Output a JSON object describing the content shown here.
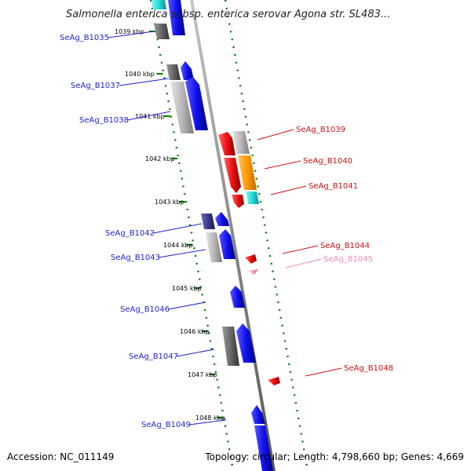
{
  "title": "Salmonella enterica subsp. enterica serovar Agona str. SL483...",
  "footer": {
    "accession": "Accession: NC_011149",
    "summary": "Topology: circular; Length: 4,798,660 bp; Genes: 4,669"
  },
  "kbp_labels": [
    "1039 kbp",
    "1040 kbp",
    "1041 kbp",
    "1042 kbp",
    "1043 kbp",
    "1044 kbp",
    "1045 kbp",
    "1046 kbp",
    "1047 kbp",
    "1048 kbp"
  ],
  "colors": {
    "backbone": "#888888",
    "tick": "#008000",
    "left_label": "#1f1fcc",
    "right_label": "#cc1111",
    "pale_label": "#f08cb0",
    "blue": "#1010ee",
    "navy": "#3a3a8c",
    "dark_gray": "#666666",
    "light_gray": "#b8b8b8",
    "red": "#ee1111",
    "orange": "#ff9900",
    "cyan": "#22dddd",
    "pink": "#f4a0c0"
  },
  "genes_left": [
    {
      "label": "SeAg_B1035"
    },
    {
      "label": "SeAg_B1037"
    },
    {
      "label": "SeAg_B1038"
    },
    {
      "label": "SeAg_B1042"
    },
    {
      "label": "SeAg_B1043"
    },
    {
      "label": "SeAg_B1046"
    },
    {
      "label": "SeAg_B1047"
    },
    {
      "label": "SeAg_B1049"
    }
  ],
  "genes_right": [
    {
      "label": "SeAg_B1039"
    },
    {
      "label": "SeAg_B1040"
    },
    {
      "label": "SeAg_B1041"
    },
    {
      "label": "SeAg_B1044"
    },
    {
      "label": "SeAg_B1045"
    },
    {
      "label": "SeAg_B1048"
    }
  ]
}
